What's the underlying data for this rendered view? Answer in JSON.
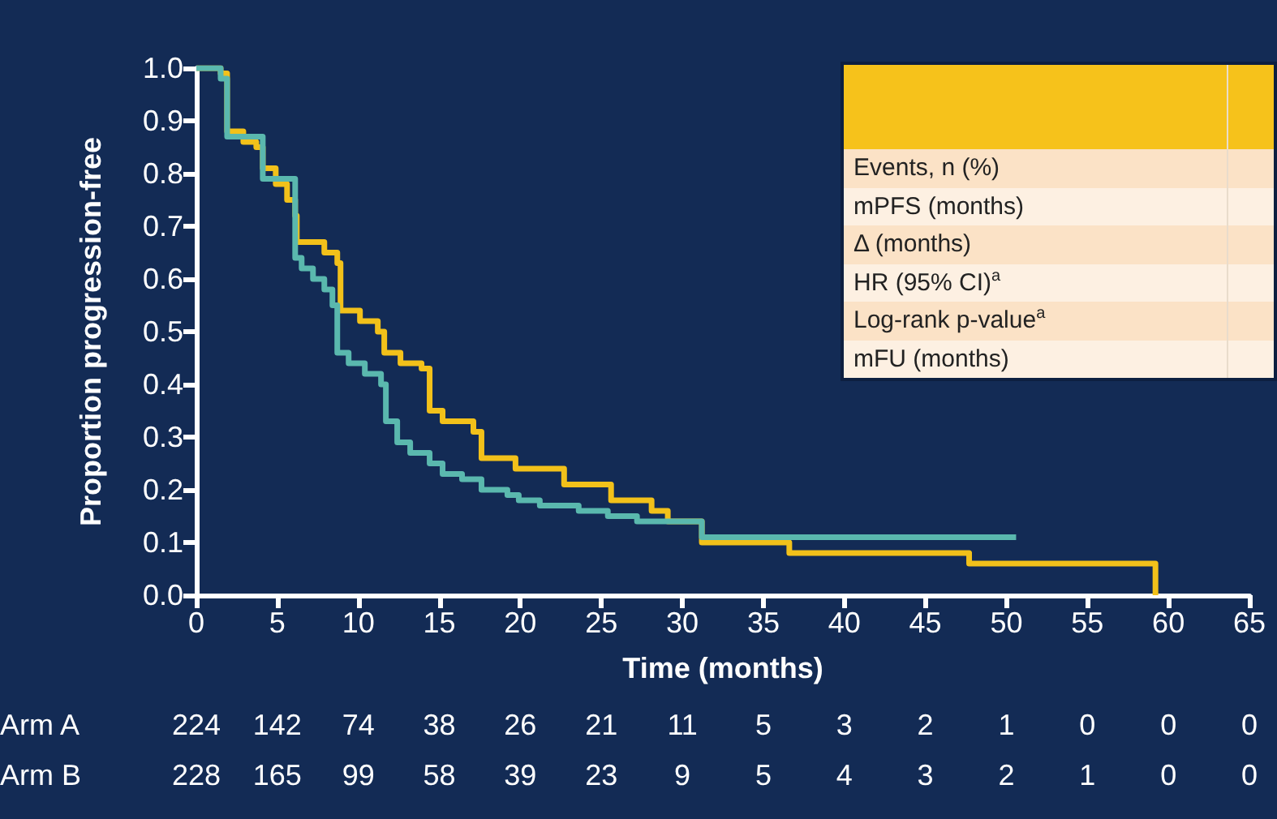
{
  "chart_data": {
    "type": "step",
    "xlabel": "Time (months)",
    "ylabel": "Proportion progression-free",
    "series": [
      {
        "color": "#f2c11a",
        "x": [
          0,
          1.5,
          1.9,
          2.9,
          3.7,
          4.1,
          4.9,
          5.6,
          6.1,
          6.2,
          7.9,
          8.7,
          8.9,
          10.1,
          11.2,
          11.6,
          12.6,
          13.9,
          14.4,
          15.2,
          17.1,
          17.6,
          19.7,
          22.7,
          25.6,
          28.1,
          29.1,
          31.2,
          36.6,
          47.7,
          59.2
        ],
        "values": [
          1.0,
          0.99,
          0.88,
          0.86,
          0.85,
          0.81,
          0.78,
          0.75,
          0.72,
          0.67,
          0.65,
          0.63,
          0.54,
          0.52,
          0.5,
          0.46,
          0.44,
          0.43,
          0.35,
          0.33,
          0.31,
          0.26,
          0.24,
          0.21,
          0.18,
          0.16,
          0.14,
          0.1,
          0.08,
          0.06,
          0.0
        ]
      },
      {
        "color": "#5ab8ae",
        "x": [
          0,
          1.5,
          1.9,
          4.1,
          6.1,
          6.5,
          7.2,
          7.9,
          8.4,
          8.7,
          9.4,
          10.4,
          11.4,
          11.7,
          12.4,
          13.2,
          14.4,
          15.2,
          16.4,
          17.6,
          19.2,
          19.9,
          21.2,
          23.6,
          25.4,
          27.2,
          31.2,
          50.6
        ],
        "values": [
          1.0,
          0.98,
          0.87,
          0.79,
          0.64,
          0.62,
          0.6,
          0.58,
          0.55,
          0.46,
          0.44,
          0.42,
          0.4,
          0.33,
          0.29,
          0.27,
          0.25,
          0.23,
          0.22,
          0.2,
          0.19,
          0.18,
          0.17,
          0.16,
          0.15,
          0.14,
          0.11,
          0.11
        ]
      }
    ],
    "xlim": [
      0,
      65
    ],
    "xticks": [
      0,
      5,
      10,
      15,
      20,
      25,
      30,
      35,
      40,
      45,
      50,
      55,
      60,
      65
    ],
    "ylim": [
      0,
      1
    ],
    "yticks": [
      {
        "value": 0,
        "label": "0.0"
      },
      {
        "value": 0.1,
        "label": "0.1"
      },
      {
        "value": 0.2,
        "label": "0.2"
      },
      {
        "value": 0.3,
        "label": "0.3"
      },
      {
        "value": 0.4,
        "label": "0.4"
      },
      {
        "value": 0.5,
        "label": "0.5"
      },
      {
        "value": 0.6,
        "label": "0.6"
      },
      {
        "value": 0.7,
        "label": "0.7"
      },
      {
        "value": 0.8,
        "label": "0.8"
      },
      {
        "value": 0.9,
        "label": "0.9"
      },
      {
        "value": 1,
        "label": "1.0"
      }
    ],
    "grid": false,
    "marker": "none",
    "line_style": "solid",
    "annotations": [
      "Events, n (%)",
      "mPFS (months)",
      "Δ (months)",
      "HR (95% CI)$^{a}$",
      "Log-rank p-value$^{a}$",
      "mFU (months)",
      "Arm A",
      "224",
      "142",
      "74",
      "38",
      "26",
      "21",
      "11",
      "5",
      "3",
      "2",
      "1",
      "0",
      "0",
      "0",
      "Arm B",
      "228",
      "165",
      "99",
      "58",
      "39",
      "23",
      "9",
      "5",
      "4",
      "3",
      "2",
      "1",
      "0",
      "0"
    ]
  }
}
